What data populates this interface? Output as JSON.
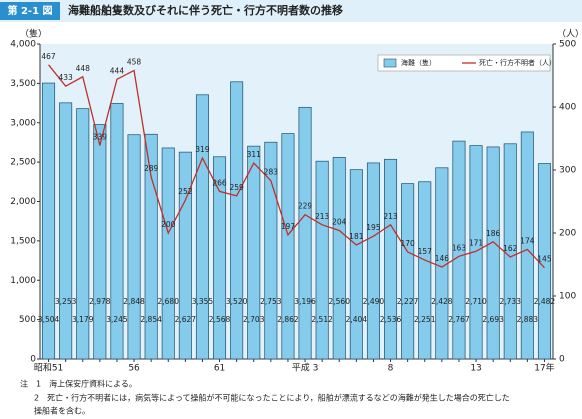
{
  "chart_data": {
    "type": "bar",
    "figure_label": "第 2-1 図",
    "title": "海難船舶隻数及びそれに伴う死亡・行方不明者数の推移",
    "ylabel": "（隻）",
    "y2label": "（人）",
    "categories": [
      "昭和51",
      null,
      null,
      null,
      null,
      "56",
      null,
      null,
      null,
      null,
      "61",
      null,
      null,
      null,
      null,
      "平成 3",
      null,
      null,
      null,
      null,
      "8",
      null,
      null,
      null,
      null,
      "13",
      null,
      null,
      null,
      "17年"
    ],
    "series": [
      {
        "name": "海難（隻）",
        "type": "bar",
        "color": "#84cbec",
        "values": [
          3504,
          3253,
          3179,
          2978,
          3245,
          2848,
          2854,
          2680,
          2627,
          3355,
          2568,
          3520,
          2703,
          2753,
          2862,
          3196,
          2512,
          2560,
          2404,
          2490,
          2536,
          2227,
          2251,
          2428,
          2767,
          2710,
          2693,
          2733,
          2883,
          2482
        ],
        "value_labels": [
          "3,504",
          "3,253",
          "3,179",
          "2,978",
          "3,245",
          "2,848",
          "2,854",
          "2,680",
          "2,627",
          "3,355",
          "2,568",
          "3,520",
          "2,703",
          "2,753",
          "2,862",
          "3,196",
          "2,512",
          "2,560",
          "2,404",
          "2,490",
          "2,536",
          "2,227",
          "2,251",
          "2,428",
          "2,767",
          "2,710",
          "2,693",
          "2,733",
          "2,883",
          "2,482"
        ]
      },
      {
        "name": "死亡・行方不明者（人）",
        "type": "line",
        "axis": "y2",
        "color": "#c0302a",
        "values": [
          467,
          433,
          448,
          339,
          444,
          458,
          289,
          200,
          252,
          319,
          266,
          259,
          311,
          283,
          197,
          229,
          213,
          204,
          181,
          195,
          213,
          170,
          157,
          146,
          163,
          171,
          186,
          162,
          174,
          145
        ]
      }
    ],
    "ylim": [
      0,
      4000
    ],
    "yticks": [
      0,
      500,
      {
        "value": 1000,
        "label": "1,000"
      },
      {
        "value": 1500,
        "label": "1,500"
      },
      {
        "value": 2000,
        "label": "2,000"
      },
      {
        "value": 2500,
        "label": "2,500"
      },
      {
        "value": 3000,
        "label": "3,000"
      },
      {
        "value": 3500,
        "label": "3,500"
      },
      {
        "value": 4000,
        "label": "4,000"
      }
    ],
    "y2lim": [
      0,
      500
    ],
    "y2ticks": [
      0,
      100,
      200,
      300,
      400,
      500
    ],
    "notes": [
      "注　1　海上保安庁資料による。",
      "2　死亡・行方不明者には，病気等によって操船が不可能になったことにより，船舶が漂流するなどの海難が発生した場合の死亡した",
      "操船者を含む。"
    ]
  }
}
